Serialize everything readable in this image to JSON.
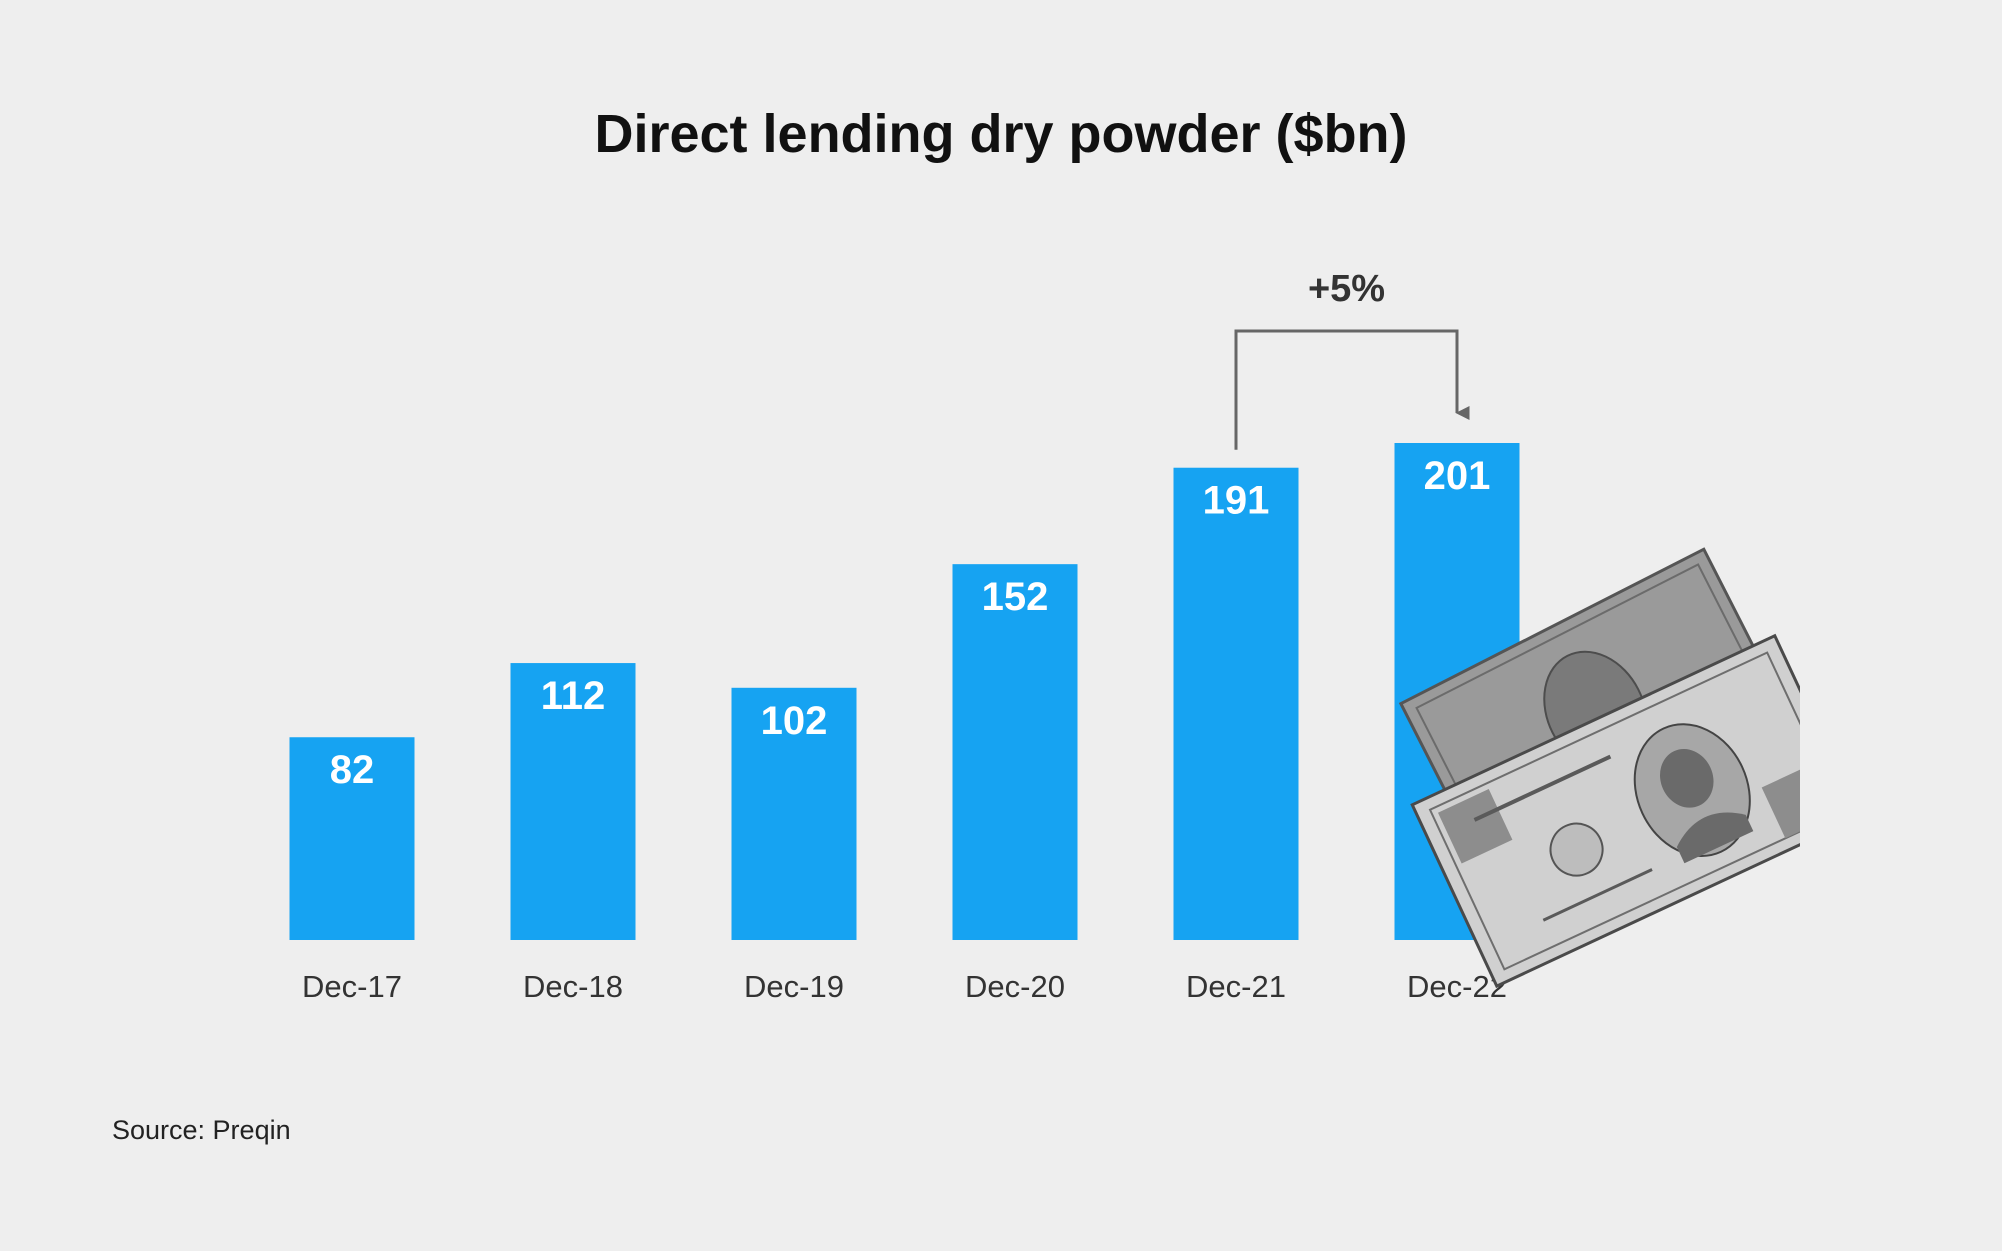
{
  "chart_data": {
    "type": "bar",
    "title": "Direct lending dry powder ($bn)",
    "xlabel": "",
    "ylabel": "",
    "categories": [
      "Dec-17",
      "Dec-18",
      "Dec-19",
      "Dec-20",
      "Dec-21",
      "Dec-22"
    ],
    "values": [
      82,
      112,
      102,
      152,
      191,
      201
    ],
    "ylim": [
      0,
      201
    ],
    "grid": false,
    "bar_color": "#16a3f2",
    "annotation": {
      "text": "+5%",
      "from": "Dec-21",
      "to": "Dec-22"
    }
  },
  "source": "Source: Preqin",
  "decoration": "dollar-bills-image"
}
